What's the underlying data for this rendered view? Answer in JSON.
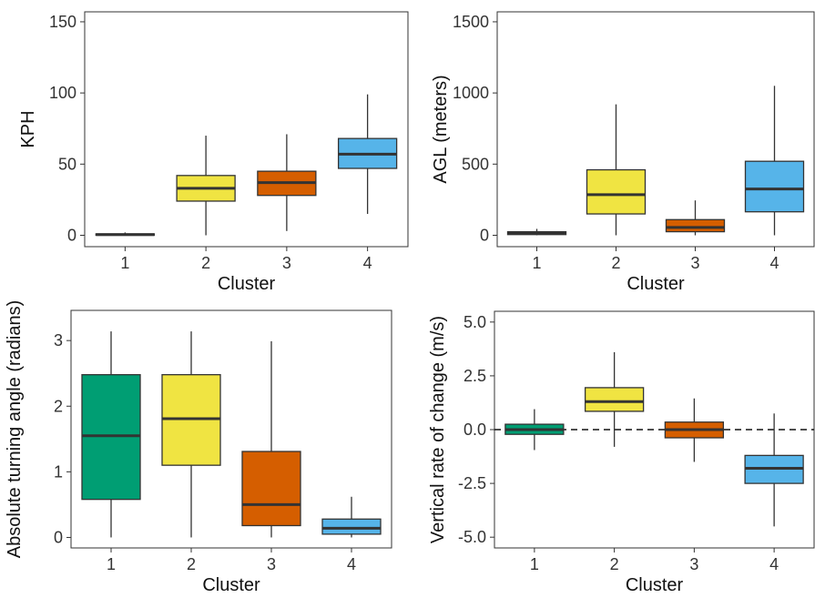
{
  "chart_data": [
    {
      "type": "box",
      "xlabel": "Cluster",
      "ylabel": "KPH",
      "ylim": [
        -8,
        157
      ],
      "yticks": [
        "0",
        "50",
        "100",
        "150"
      ],
      "ytick_values": [
        0,
        50,
        100,
        150
      ],
      "categories": [
        "1",
        "2",
        "3",
        "4"
      ],
      "colors": [
        "#2a2a2a",
        "#f0e442",
        "#d55e00",
        "#56b4e9"
      ],
      "boxes": [
        {
          "low": 0,
          "q1": 0,
          "median": 0.5,
          "q3": 1,
          "high": 2
        },
        {
          "low": 0,
          "q1": 24,
          "median": 33,
          "q3": 42,
          "high": 70
        },
        {
          "low": 3,
          "q1": 28,
          "median": 37,
          "q3": 45,
          "high": 71
        },
        {
          "low": 15,
          "q1": 47,
          "median": 57,
          "q3": 68,
          "high": 99
        }
      ],
      "reference_line": null,
      "grid": false
    },
    {
      "type": "box",
      "xlabel": "Cluster",
      "ylabel": "AGL (meters)",
      "ylim": [
        -80,
        1570
      ],
      "yticks": [
        "0",
        "500",
        "1000",
        "1500"
      ],
      "ytick_values": [
        0,
        500,
        1000,
        1500
      ],
      "categories": [
        "1",
        "2",
        "3",
        "4"
      ],
      "colors": [
        "#009e73",
        "#f0e442",
        "#d55e00",
        "#56b4e9"
      ],
      "boxes": [
        {
          "low": 0,
          "q1": 5,
          "median": 15,
          "q3": 25,
          "high": 45
        },
        {
          "low": 0,
          "q1": 150,
          "median": 285,
          "q3": 460,
          "high": 920
        },
        {
          "low": 0,
          "q1": 25,
          "median": 55,
          "q3": 110,
          "high": 245
        },
        {
          "low": 0,
          "q1": 165,
          "median": 325,
          "q3": 520,
          "high": 1050
        }
      ],
      "reference_line": null,
      "grid": false
    },
    {
      "type": "box",
      "xlabel": "Cluster",
      "ylabel": "Absolute turning angle (radians)",
      "ylim": [
        -0.16,
        3.46
      ],
      "yticks": [
        "0",
        "1",
        "2",
        "3"
      ],
      "ytick_values": [
        0,
        1,
        2,
        3
      ],
      "categories": [
        "1",
        "2",
        "3",
        "4"
      ],
      "colors": [
        "#009e73",
        "#f0e442",
        "#d55e00",
        "#56b4e9"
      ],
      "boxes": [
        {
          "low": 0,
          "q1": 0.58,
          "median": 1.55,
          "q3": 2.48,
          "high": 3.14
        },
        {
          "low": 0,
          "q1": 1.1,
          "median": 1.81,
          "q3": 2.48,
          "high": 3.14
        },
        {
          "low": 0,
          "q1": 0.18,
          "median": 0.5,
          "q3": 1.31,
          "high": 2.99
        },
        {
          "low": 0,
          "q1": 0.05,
          "median": 0.14,
          "q3": 0.28,
          "high": 0.62
        }
      ],
      "reference_line": null,
      "grid": false
    },
    {
      "type": "box",
      "xlabel": "Cluster",
      "ylabel": "Vertical rate of change (m/s)",
      "ylim": [
        -5.5,
        5.5
      ],
      "yticks": [
        "-5.0",
        "-2.5",
        "0.0",
        "2.5",
        "5.0"
      ],
      "ytick_values": [
        -5,
        -2.5,
        0,
        2.5,
        5
      ],
      "categories": [
        "1",
        "2",
        "3",
        "4"
      ],
      "colors": [
        "#009e73",
        "#f0e442",
        "#d55e00",
        "#56b4e9"
      ],
      "boxes": [
        {
          "low": -0.95,
          "q1": -0.22,
          "median": 0,
          "q3": 0.25,
          "high": 0.95
        },
        {
          "low": -0.8,
          "q1": 0.85,
          "median": 1.3,
          "q3": 1.95,
          "high": 3.6
        },
        {
          "low": -1.5,
          "q1": -0.38,
          "median": 0,
          "q3": 0.35,
          "high": 1.45
        },
        {
          "low": -4.5,
          "q1": -2.5,
          "median": -1.8,
          "q3": -1.2,
          "high": 0.75
        }
      ],
      "reference_line": {
        "y": 0,
        "style": "dashed"
      },
      "grid": false
    }
  ]
}
